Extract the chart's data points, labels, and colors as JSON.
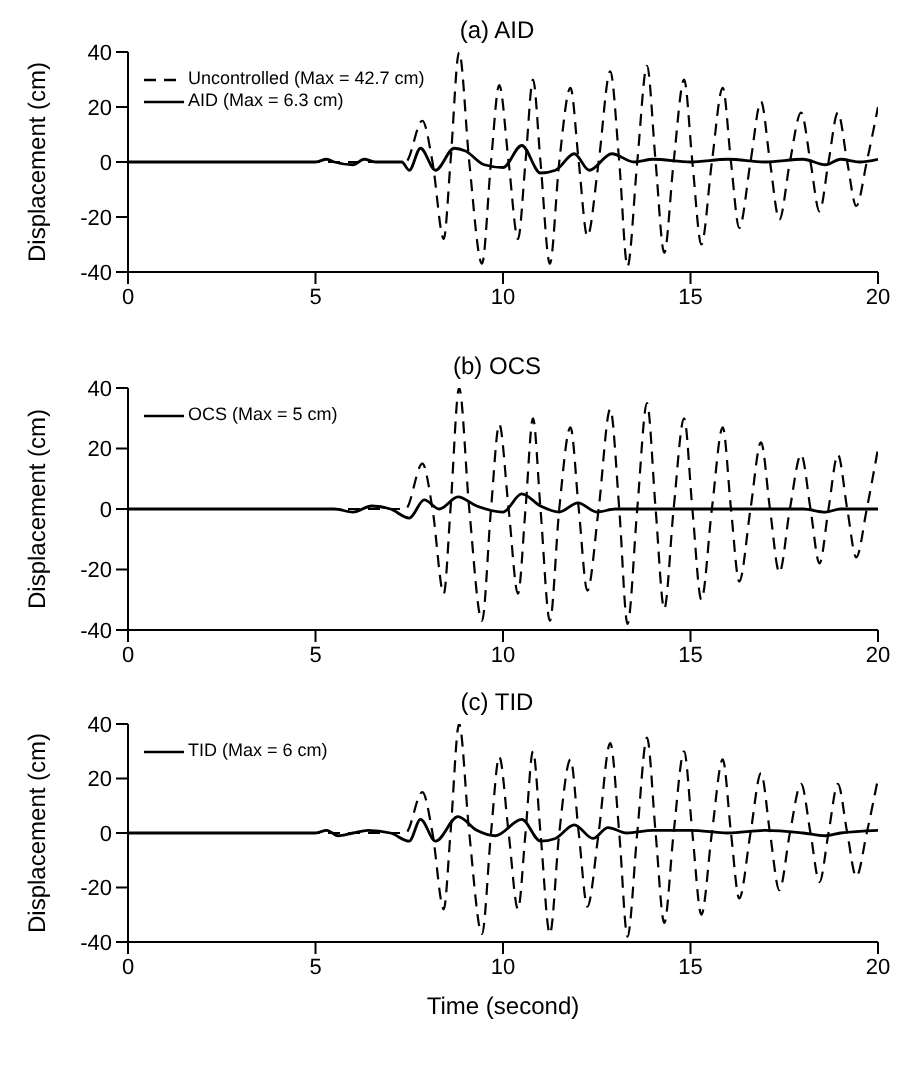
{
  "chart_data": [
    {
      "type": "line",
      "title": "(a) AID",
      "ylabel": "Displacement (cm)",
      "xlim": [
        0,
        20
      ],
      "xticks": [
        0,
        5,
        10,
        15,
        20
      ],
      "ylim": [
        -40,
        40
      ],
      "yticks": [
        -40,
        -20,
        0,
        20,
        40
      ],
      "grid": false,
      "legend": "top left",
      "marker": "none",
      "series": [
        {
          "name": "Uncontrolled (Max = 42.7 cm)",
          "color": "#000000",
          "line_style": "dashed",
          "x": [
            0,
            7.4,
            7.85,
            8.12,
            8.42,
            8.6,
            8.83,
            9.1,
            9.44,
            9.68,
            9.9,
            10.15,
            10.4,
            10.6,
            10.8,
            11,
            11.25,
            11.5,
            11.8,
            12.02,
            12.25,
            12.55,
            12.86,
            13.1,
            13.32,
            13.58,
            13.84,
            14.07,
            14.3,
            14.55,
            14.83,
            15.05,
            15.29,
            15.57,
            15.86,
            16.08,
            16.3,
            16.6,
            16.88,
            17.12,
            17.37,
            17.65,
            17.95,
            18.2,
            18.44,
            18.68,
            18.93,
            19.18,
            19.42,
            19.7,
            20
          ],
          "values": [
            0,
            0,
            15,
            0,
            -28,
            0,
            40,
            0,
            -37,
            0,
            28,
            0,
            -28,
            0,
            30,
            0,
            -37,
            0,
            27,
            0,
            -27,
            0,
            33,
            0,
            -38,
            0,
            35,
            0,
            -33,
            0,
            30,
            0,
            -30,
            0,
            27,
            0,
            -24,
            0,
            22,
            0,
            -21,
            0,
            18,
            0,
            -18,
            0,
            18,
            0,
            -16,
            0,
            20
          ]
        },
        {
          "name": "AID (Max = 6.3 cm)",
          "color": "#000000",
          "line_style": "solid",
          "x": [
            0,
            5,
            5.3,
            5.5,
            6,
            6.3,
            6.6,
            7,
            7.3,
            7.5,
            7.8,
            8.2,
            8.7,
            9,
            9.5,
            10,
            10.5,
            11,
            11.4,
            11.9,
            12.3,
            12.9,
            13.5,
            14,
            15,
            16,
            17,
            18,
            18.6,
            19,
            19.5,
            20
          ],
          "values": [
            0,
            0,
            1,
            0,
            -1,
            1,
            0,
            0,
            0,
            -3,
            5,
            -3,
            5,
            4,
            -1,
            -2,
            6,
            -4,
            -3,
            3,
            -3,
            3,
            0,
            1,
            0,
            1,
            0,
            1,
            -1,
            1,
            0,
            1
          ]
        }
      ]
    },
    {
      "type": "line",
      "title": "(b) OCS",
      "ylabel": "Displacement (cm)",
      "xlim": [
        0,
        20
      ],
      "xticks": [
        0,
        5,
        10,
        15,
        20
      ],
      "ylim": [
        -40,
        40
      ],
      "yticks": [
        -40,
        -20,
        0,
        20,
        40
      ],
      "grid": false,
      "legend": "top left",
      "marker": "none",
      "series": [
        {
          "color": "#000000",
          "line_style": "dashed",
          "x": [
            0,
            7.4,
            7.85,
            8.12,
            8.42,
            8.6,
            8.83,
            9.1,
            9.44,
            9.68,
            9.9,
            10.15,
            10.4,
            10.6,
            10.8,
            11,
            11.25,
            11.5,
            11.8,
            12.02,
            12.25,
            12.55,
            12.86,
            13.1,
            13.32,
            13.58,
            13.84,
            14.07,
            14.3,
            14.55,
            14.83,
            15.05,
            15.29,
            15.57,
            15.86,
            16.08,
            16.3,
            16.6,
            16.88,
            17.12,
            17.37,
            17.65,
            17.95,
            18.2,
            18.44,
            18.68,
            18.93,
            19.18,
            19.42,
            19.7,
            20
          ],
          "values": [
            0,
            0,
            15,
            0,
            -28,
            0,
            40,
            0,
            -37,
            0,
            28,
            0,
            -28,
            0,
            30,
            0,
            -37,
            0,
            27,
            0,
            -27,
            0,
            33,
            0,
            -38,
            0,
            35,
            0,
            -33,
            0,
            30,
            0,
            -30,
            0,
            27,
            0,
            -24,
            0,
            22,
            0,
            -21,
            0,
            18,
            0,
            -18,
            0,
            18,
            0,
            -16,
            0,
            20
          ]
        },
        {
          "name": "OCS (Max = 5 cm)",
          "color": "#000000",
          "line_style": "solid",
          "x": [
            0,
            5,
            5.5,
            6,
            6.5,
            7,
            7.5,
            7.9,
            8.3,
            8.8,
            9.3,
            10,
            10.5,
            11,
            11.5,
            12,
            12.5,
            13,
            14,
            15,
            16,
            17,
            18,
            18.6,
            19,
            20
          ],
          "values": [
            0,
            0,
            0,
            -1,
            1,
            0,
            -3,
            3,
            0,
            4,
            1,
            -1,
            5,
            1,
            -1,
            2,
            -1,
            0,
            0,
            0,
            0,
            0,
            0,
            -1,
            0,
            0
          ]
        }
      ]
    },
    {
      "type": "line",
      "title": "(c) TID",
      "xlabel": "Time (second)",
      "ylabel": "Displacement (cm)",
      "xlim": [
        0,
        20
      ],
      "xticks": [
        0,
        5,
        10,
        15,
        20
      ],
      "ylim": [
        -40,
        40
      ],
      "yticks": [
        -40,
        -20,
        0,
        20,
        40
      ],
      "grid": false,
      "legend": "top left",
      "marker": "none",
      "series": [
        {
          "color": "#000000",
          "line_style": "dashed",
          "x": [
            0,
            7.4,
            7.85,
            8.12,
            8.42,
            8.6,
            8.83,
            9.1,
            9.44,
            9.68,
            9.9,
            10.15,
            10.4,
            10.6,
            10.8,
            11,
            11.25,
            11.5,
            11.8,
            12.02,
            12.25,
            12.55,
            12.86,
            13.1,
            13.32,
            13.58,
            13.84,
            14.07,
            14.3,
            14.55,
            14.83,
            15.05,
            15.29,
            15.57,
            15.86,
            16.08,
            16.3,
            16.6,
            16.88,
            17.12,
            17.37,
            17.65,
            17.95,
            18.2,
            18.44,
            18.68,
            18.93,
            19.18,
            19.42,
            19.7,
            20
          ],
          "values": [
            0,
            0,
            15,
            0,
            -28,
            0,
            40,
            0,
            -37,
            0,
            28,
            0,
            -28,
            0,
            30,
            0,
            -37,
            0,
            27,
            0,
            -27,
            0,
            33,
            0,
            -38,
            0,
            35,
            0,
            -33,
            0,
            30,
            0,
            -30,
            0,
            27,
            0,
            -24,
            0,
            22,
            0,
            -21,
            0,
            18,
            0,
            -18,
            0,
            18,
            0,
            -16,
            0,
            20
          ]
        },
        {
          "name": "TID (Max = 6 cm)",
          "color": "#000000",
          "line_style": "solid",
          "x": [
            0,
            5,
            5.3,
            5.6,
            6,
            6.4,
            7,
            7.5,
            7.8,
            8.2,
            8.8,
            9.3,
            9.8,
            10.5,
            11,
            11.4,
            11.9,
            12.4,
            12.8,
            13.3,
            14,
            15,
            16,
            17,
            18,
            18.6,
            19,
            20
          ],
          "values": [
            0,
            0,
            1,
            -1,
            0,
            1,
            0,
            -3,
            5,
            -3,
            6,
            1,
            -1,
            5,
            -3,
            -2,
            3,
            -2,
            2,
            0,
            1,
            1,
            0,
            1,
            0,
            -1,
            0,
            1
          ]
        }
      ]
    }
  ]
}
